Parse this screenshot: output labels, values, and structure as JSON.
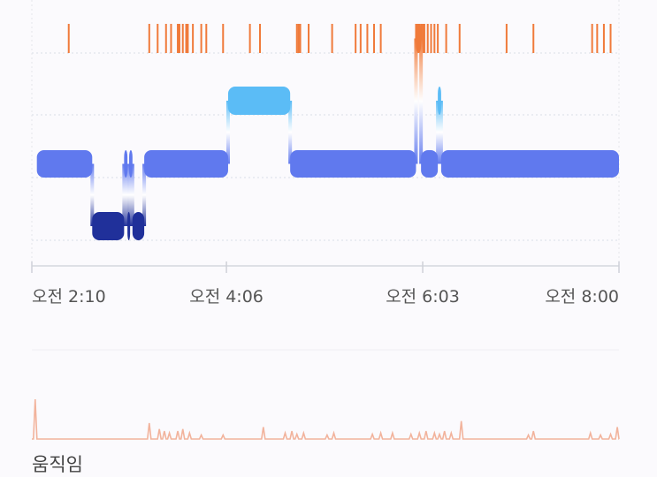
{
  "colors": {
    "awake": "#f07a3a",
    "rem": "#5bbcf6",
    "light": "#6079ee",
    "deep": "#20309a",
    "movement": "#f2b39c",
    "gridline": "#dadde6"
  },
  "chart_data": {
    "type": "sleep-stage-timeline",
    "x_range_minutes": [
      0,
      350
    ],
    "x_tick_labels": [
      {
        "t": 0,
        "label": "오전 2:10"
      },
      {
        "t": 116,
        "label": "오전 4:06"
      },
      {
        "t": 233,
        "label": "오전 6:03"
      },
      {
        "t": 350,
        "label": "오전 8:00"
      }
    ],
    "stage_levels": [
      "awake",
      "rem",
      "light",
      "deep"
    ],
    "stages": [
      {
        "stage": "light",
        "start": 3,
        "end": 36
      },
      {
        "stage": "deep",
        "start": 36,
        "end": 55
      },
      {
        "stage": "light",
        "start": 55,
        "end": 57
      },
      {
        "stage": "deep",
        "start": 57,
        "end": 58
      },
      {
        "stage": "light",
        "start": 58,
        "end": 60
      },
      {
        "stage": "deep",
        "start": 60,
        "end": 67
      },
      {
        "stage": "light",
        "start": 67,
        "end": 117
      },
      {
        "stage": "rem",
        "start": 117,
        "end": 154
      },
      {
        "stage": "light",
        "start": 154,
        "end": 229
      },
      {
        "stage": "awake",
        "start": 229,
        "end": 232
      },
      {
        "stage": "light",
        "start": 232,
        "end": 242
      },
      {
        "stage": "rem",
        "start": 242,
        "end": 244
      },
      {
        "stage": "light",
        "start": 244,
        "end": 350
      }
    ],
    "awake_ticks": [
      22,
      70,
      75,
      80,
      83,
      87,
      88,
      90,
      92,
      93,
      96,
      101,
      104,
      114,
      130,
      136,
      158,
      159,
      160,
      165,
      179,
      193,
      196,
      200,
      204,
      208,
      229,
      230,
      231,
      232,
      233,
      234,
      236,
      238,
      240,
      242,
      247,
      255,
      283,
      299,
      334,
      337,
      341,
      345
    ],
    "movement": {
      "title": "움직임",
      "spikes": [
        {
          "t": 2,
          "v": 1.0
        },
        {
          "t": 70,
          "v": 0.4
        },
        {
          "t": 76,
          "v": 0.25
        },
        {
          "t": 79,
          "v": 0.2
        },
        {
          "t": 82,
          "v": 0.15
        },
        {
          "t": 87,
          "v": 0.2
        },
        {
          "t": 90,
          "v": 0.25
        },
        {
          "t": 94,
          "v": 0.15
        },
        {
          "t": 101,
          "v": 0.1
        },
        {
          "t": 114,
          "v": 0.1
        },
        {
          "t": 138,
          "v": 0.3
        },
        {
          "t": 151,
          "v": 0.15
        },
        {
          "t": 155,
          "v": 0.2
        },
        {
          "t": 158,
          "v": 0.12
        },
        {
          "t": 162,
          "v": 0.15
        },
        {
          "t": 176,
          "v": 0.1
        },
        {
          "t": 180,
          "v": 0.15
        },
        {
          "t": 203,
          "v": 0.12
        },
        {
          "t": 208,
          "v": 0.15
        },
        {
          "t": 215,
          "v": 0.15
        },
        {
          "t": 226,
          "v": 0.12
        },
        {
          "t": 231,
          "v": 0.15
        },
        {
          "t": 235,
          "v": 0.2
        },
        {
          "t": 240,
          "v": 0.15
        },
        {
          "t": 243,
          "v": 0.12
        },
        {
          "t": 246,
          "v": 0.2
        },
        {
          "t": 250,
          "v": 0.15
        },
        {
          "t": 256,
          "v": 0.45
        },
        {
          "t": 296,
          "v": 0.1
        },
        {
          "t": 299,
          "v": 0.2
        },
        {
          "t": 333,
          "v": 0.15
        },
        {
          "t": 339,
          "v": 0.1
        },
        {
          "t": 345,
          "v": 0.12
        },
        {
          "t": 349,
          "v": 0.3
        }
      ]
    }
  }
}
